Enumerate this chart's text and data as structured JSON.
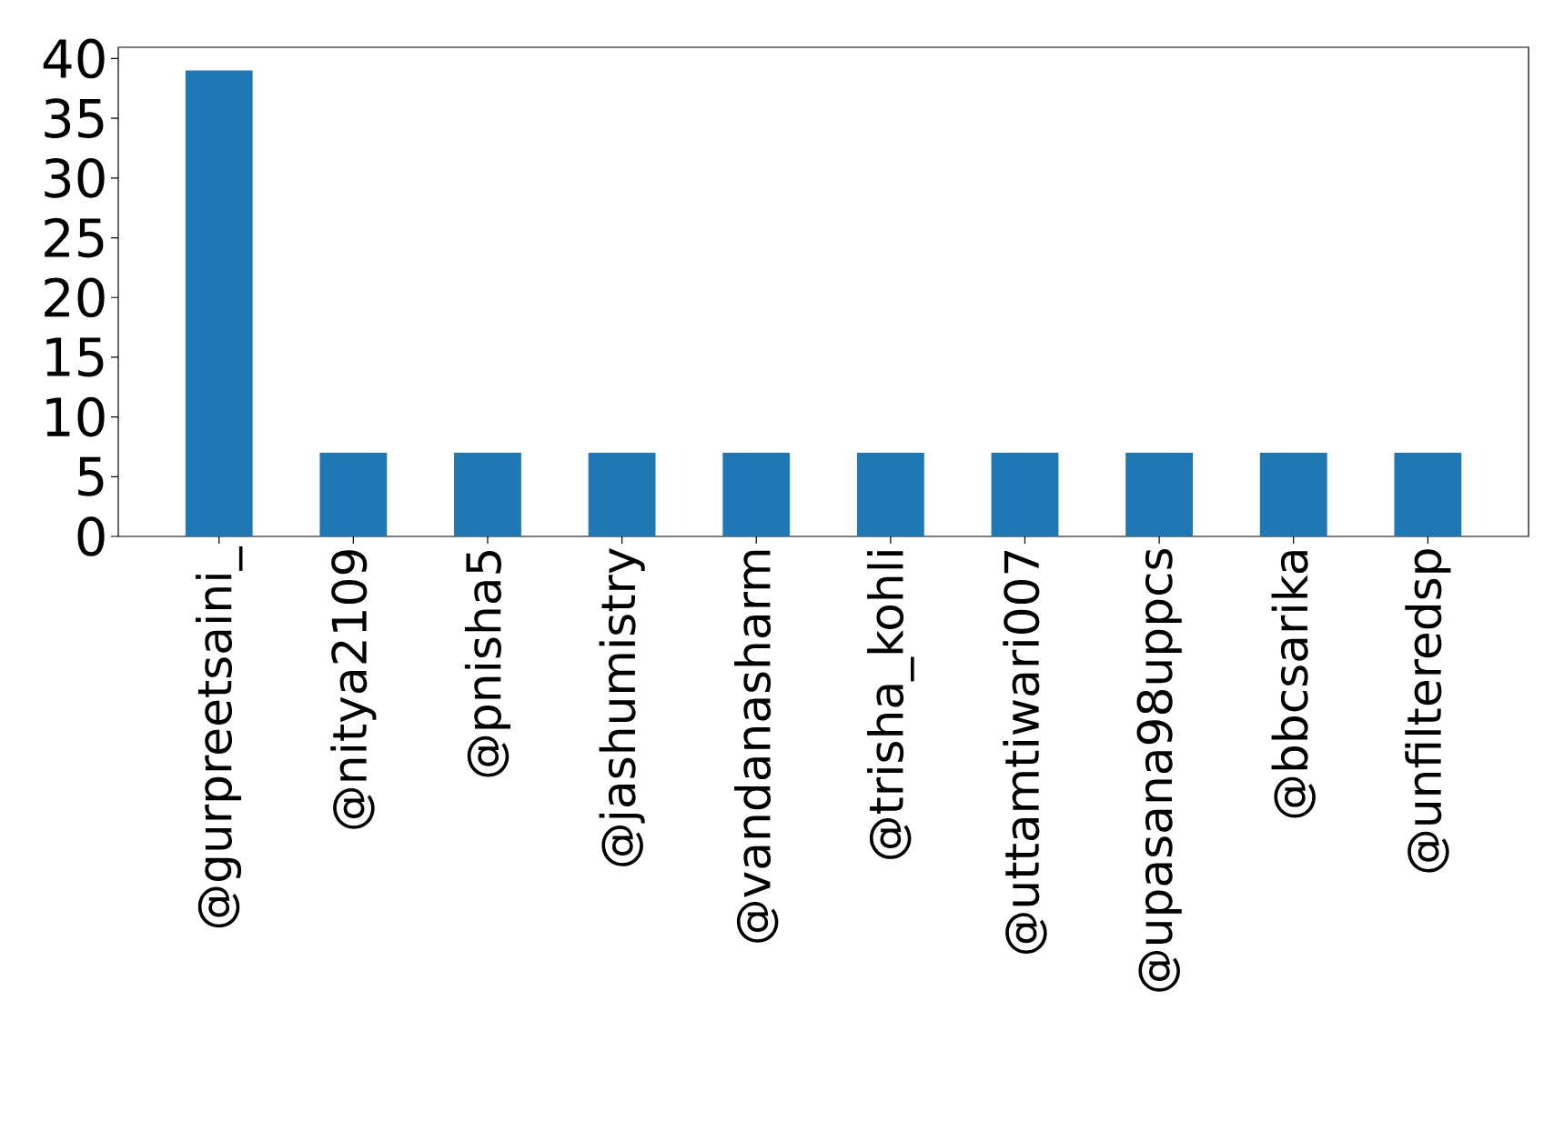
{
  "chart_data": {
    "type": "bar",
    "categories": [
      "@gurpreetsaini_",
      "@nitya2109",
      "@pnisha5",
      "@jashumistry",
      "@vandanasharm",
      "@trisha_kohli",
      "@uttamtiwari007",
      "@upasana98uppcs",
      "@bbcsarika",
      "@unfilteredsp"
    ],
    "values": [
      39,
      7,
      7,
      7,
      7,
      7,
      7,
      7,
      7,
      7
    ],
    "color": "#1f77b4",
    "ylim": [
      0,
      40.95
    ],
    "yticks": [
      0,
      5,
      10,
      15,
      20,
      25,
      30,
      35,
      40
    ],
    "grid": false
  }
}
